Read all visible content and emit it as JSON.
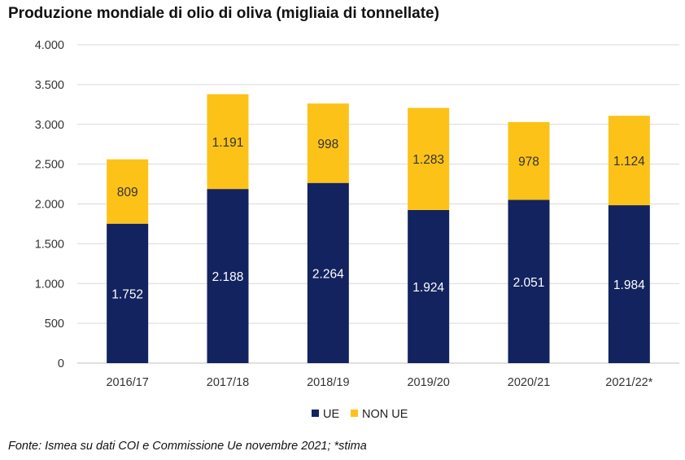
{
  "chart_data": {
    "type": "bar",
    "stacked": true,
    "title": "Produzione mondiale di olio di oliva (migliaia di tonnellate)",
    "categories": [
      "2016/17",
      "2017/18",
      "2018/19",
      "2019/20",
      "2020/21",
      "2021/22*"
    ],
    "series": [
      {
        "name": "UE",
        "values": [
          1752,
          2188,
          2264,
          1924,
          2051,
          1984
        ],
        "value_labels": [
          "1.752",
          "2.188",
          "2.264",
          "1.924",
          "2.051",
          "1.984"
        ]
      },
      {
        "name": "NON UE",
        "values": [
          809,
          1191,
          998,
          1283,
          978,
          1124
        ],
        "value_labels": [
          "809",
          "1.191",
          "998",
          "1.283",
          "978",
          "1.124"
        ]
      }
    ],
    "ylim": [
      0,
      4000
    ],
    "yticks": [
      0,
      500,
      1000,
      1500,
      2000,
      2500,
      3000,
      3500,
      4000
    ],
    "ytick_labels": [
      "0",
      "500",
      "1.000",
      "1.500",
      "2.000",
      "2.500",
      "3.000",
      "3.500",
      "4.000"
    ],
    "xlabel": "",
    "ylabel": "",
    "grid": true,
    "legend_position": "bottom",
    "colors": {
      "UE": "#13235f",
      "NON UE": "#fcc218"
    },
    "label_colors": {
      "UE": "#ffffff",
      "NON UE": "#333333"
    }
  },
  "source": "Fonte: Ismea su dati COI e Commissione Ue novembre 2021; *stima"
}
